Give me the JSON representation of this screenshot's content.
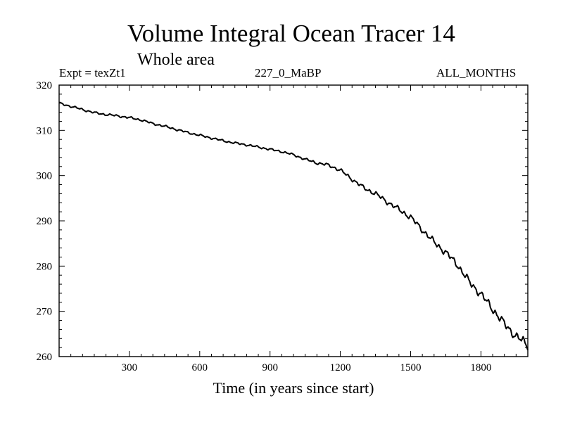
{
  "chart_data": {
    "type": "line",
    "title": "Volume Integral Ocean Tracer 14",
    "subtitle": "Whole area",
    "annotations": {
      "experiment": "Expt = texZt1",
      "run": "227_0_MaBP",
      "months": "ALL_MONTHS"
    },
    "xlabel": "Time (in years since start)",
    "ylabel": "",
    "xlim": [
      0,
      2000
    ],
    "ylim": [
      260,
      320
    ],
    "x_ticks": [
      300,
      600,
      900,
      1200,
      1500,
      1800
    ],
    "y_ticks": [
      260,
      270,
      280,
      290,
      300,
      310,
      320
    ],
    "grid": false,
    "series": [
      {
        "name": "Tracer 14",
        "x": [
          0,
          50,
          100,
          150,
          200,
          250,
          300,
          350,
          400,
          450,
          500,
          550,
          600,
          650,
          700,
          750,
          800,
          850,
          900,
          950,
          1000,
          1050,
          1100,
          1150,
          1200,
          1250,
          1300,
          1350,
          1400,
          1450,
          1500,
          1550,
          1600,
          1650,
          1700,
          1750,
          1800,
          1850,
          1900,
          1950,
          2000
        ],
        "values": [
          316.0,
          315.3,
          314.6,
          313.9,
          313.5,
          313.2,
          312.8,
          312.3,
          311.5,
          310.9,
          310.2,
          309.5,
          308.9,
          308.3,
          307.7,
          307.2,
          306.8,
          306.3,
          305.8,
          305.3,
          304.6,
          303.6,
          302.8,
          302.3,
          301.2,
          299.2,
          297.3,
          296.0,
          294.2,
          292.5,
          290.8,
          288.0,
          285.3,
          283.0,
          280.3,
          276.5,
          273.8,
          270.5,
          267.2,
          264.5,
          262.5
        ]
      }
    ]
  }
}
